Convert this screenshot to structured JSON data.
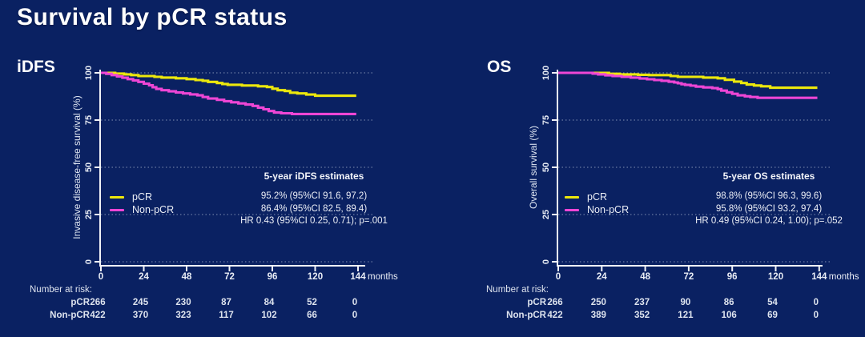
{
  "slide": {
    "title": "Survival by pCR status",
    "background_color": "#0a2162"
  },
  "colors": {
    "pcr": "#ece80c",
    "non_pcr": "#ee46d5",
    "grid": "#a8b6cf",
    "axis": "#f0f2f6",
    "text": "#e9edf5"
  },
  "chart_data": [
    {
      "type": "line",
      "subtype": "kaplan-meier-step",
      "panel_label": "iDFS",
      "ylabel": "Invasive disease-free survival (%)",
      "xlabel": "months",
      "xlim": [
        0,
        144
      ],
      "ylim": [
        0,
        100
      ],
      "xticks": [
        0,
        24,
        48,
        72,
        96,
        120,
        144
      ],
      "yticks": [
        0,
        25,
        50,
        75,
        100
      ],
      "grid": true,
      "legend_position": "center-left",
      "series": [
        {
          "name": "pCR",
          "color_key": "pcr",
          "points": [
            [
              0,
              100
            ],
            [
              8,
              99.6
            ],
            [
              13,
              99.2
            ],
            [
              17,
              98.8
            ],
            [
              21,
              98.3
            ],
            [
              30,
              97.9
            ],
            [
              34,
              97.5
            ],
            [
              42,
              97.1
            ],
            [
              48,
              96.7
            ],
            [
              53,
              96.2
            ],
            [
              57,
              95.8
            ],
            [
              60,
              95.2
            ],
            [
              65,
              94.6
            ],
            [
              68,
              94.1
            ],
            [
              71,
              93.7
            ],
            [
              79,
              93.3
            ],
            [
              88,
              92.9
            ],
            [
              93,
              92.5
            ],
            [
              96,
              91.6
            ],
            [
              99,
              90.8
            ],
            [
              103,
              90.4
            ],
            [
              106,
              89.5
            ],
            [
              110,
              89.1
            ],
            [
              115,
              88.5
            ],
            [
              120,
              87.9
            ],
            [
              143,
              87.9
            ]
          ]
        },
        {
          "name": "Non-pCR",
          "color_key": "non_pcr",
          "points": [
            [
              0,
              100
            ],
            [
              3,
              99.5
            ],
            [
              6,
              98.8
            ],
            [
              9,
              98.1
            ],
            [
              12,
              97.4
            ],
            [
              15,
              96.7
            ],
            [
              18,
              96.0
            ],
            [
              21,
              95.2
            ],
            [
              24,
              94.3
            ],
            [
              27,
              93.4
            ],
            [
              29,
              92.4
            ],
            [
              31,
              91.5
            ],
            [
              34,
              90.8
            ],
            [
              38,
              90.2
            ],
            [
              42,
              89.6
            ],
            [
              46,
              89.1
            ],
            [
              50,
              88.6
            ],
            [
              54,
              88.1
            ],
            [
              57,
              87.2
            ],
            [
              60,
              86.4
            ],
            [
              65,
              85.7
            ],
            [
              69,
              85.0
            ],
            [
              73,
              84.4
            ],
            [
              77,
              83.8
            ],
            [
              81,
              83.2
            ],
            [
              85,
              82.5
            ],
            [
              88,
              81.6
            ],
            [
              91,
              80.7
            ],
            [
              94,
              79.8
            ],
            [
              97,
              79.0
            ],
            [
              101,
              78.6
            ],
            [
              107,
              78.2
            ],
            [
              143,
              78.2
            ]
          ]
        }
      ],
      "annotations": {
        "stats_title": "5-year iDFS estimates",
        "stats_rows": [
          "95.2% (95%CI 91.6, 97.2)",
          "86.4% (95%CI 82.5, 89.4)"
        ],
        "hr": "HR 0.43 (95%CI 0.25, 0.71); p=.001"
      },
      "number_at_risk": {
        "title": "Number at risk:",
        "rows": [
          {
            "label": "pCR",
            "values": [
              266,
              245,
              230,
              87,
              84,
              52,
              0
            ]
          },
          {
            "label": "Non-pCR",
            "values": [
              422,
              370,
              323,
              117,
              102,
              66,
              0
            ]
          }
        ]
      }
    },
    {
      "type": "line",
      "subtype": "kaplan-meier-step",
      "panel_label": "OS",
      "ylabel": "Overall survival (%)",
      "xlabel": "months",
      "xlim": [
        0,
        144
      ],
      "ylim": [
        0,
        100
      ],
      "xticks": [
        0,
        24,
        48,
        72,
        96,
        120,
        144
      ],
      "yticks": [
        0,
        25,
        50,
        75,
        100
      ],
      "grid": true,
      "legend_position": "center-left",
      "series": [
        {
          "name": "pCR",
          "color_key": "pcr",
          "points": [
            [
              0,
              100
            ],
            [
              28,
              99.5
            ],
            [
              34,
              99.2
            ],
            [
              44,
              99.0
            ],
            [
              50,
              98.8
            ],
            [
              62,
              98.3
            ],
            [
              66,
              97.9
            ],
            [
              80,
              97.5
            ],
            [
              88,
              97.1
            ],
            [
              92,
              96.3
            ],
            [
              97,
              95.4
            ],
            [
              101,
              94.6
            ],
            [
              104,
              93.8
            ],
            [
              108,
              93.3
            ],
            [
              112,
              92.9
            ],
            [
              117,
              92.1
            ],
            [
              143,
              92.1
            ]
          ]
        },
        {
          "name": "Non-pCR",
          "color_key": "non_pcr",
          "points": [
            [
              0,
              100
            ],
            [
              19,
              99.6
            ],
            [
              22,
              99.2
            ],
            [
              26,
              98.7
            ],
            [
              30,
              98.3
            ],
            [
              35,
              97.9
            ],
            [
              40,
              97.5
            ],
            [
              45,
              97.0
            ],
            [
              49,
              96.6
            ],
            [
              53,
              96.2
            ],
            [
              57,
              95.8
            ],
            [
              61,
              95.3
            ],
            [
              64,
              94.9
            ],
            [
              66,
              94.5
            ],
            [
              68,
              94.0
            ],
            [
              70,
              93.6
            ],
            [
              73,
              93.2
            ],
            [
              76,
              92.7
            ],
            [
              80,
              92.3
            ],
            [
              85,
              91.9
            ],
            [
              88,
              91.4
            ],
            [
              90,
              90.6
            ],
            [
              93,
              89.7
            ],
            [
              96,
              88.9
            ],
            [
              99,
              88.1
            ],
            [
              103,
              87.6
            ],
            [
              106,
              87.2
            ],
            [
              110,
              86.8
            ],
            [
              143,
              86.8
            ]
          ]
        }
      ],
      "annotations": {
        "stats_title": "5-year OS estimates",
        "stats_rows": [
          "98.8% (95%CI 96.3, 99.6)",
          "95.8% (95%CI 93.2, 97.4)"
        ],
        "hr": "HR 0.49 (95%CI 0.24, 1.00); p=.052"
      },
      "number_at_risk": {
        "title": "Number at risk:",
        "rows": [
          {
            "label": "pCR",
            "values": [
              266,
              250,
              237,
              90,
              86,
              54,
              0
            ]
          },
          {
            "label": "Non-pCR",
            "values": [
              422,
              389,
              352,
              121,
              106,
              69,
              0
            ]
          }
        ]
      }
    }
  ]
}
